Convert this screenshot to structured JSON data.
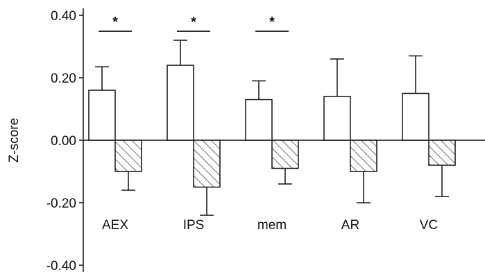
{
  "chart_data": {
    "type": "bar",
    "title": "",
    "xlabel": "",
    "ylabel": "Z-score",
    "ylim": [
      -0.4,
      0.4
    ],
    "yticks": [
      "0.40",
      "0.20",
      "0.00",
      "-0.20",
      "-0.40"
    ],
    "ytick_values": [
      0.4,
      0.2,
      0.0,
      -0.2,
      -0.4
    ],
    "categories": [
      "AEX",
      "IPS",
      "mem",
      "AR",
      "VC"
    ],
    "series": [
      {
        "style": "open",
        "values": [
          0.16,
          0.24,
          0.13,
          0.14,
          0.15
        ],
        "errors": [
          0.075,
          0.08,
          0.06,
          0.12,
          0.12
        ]
      },
      {
        "style": "hatched",
        "values": [
          -0.1,
          -0.15,
          -0.09,
          -0.1,
          -0.08
        ],
        "errors": [
          0.06,
          0.09,
          0.05,
          0.1,
          0.1
        ]
      }
    ],
    "significance": [
      {
        "category": "AEX",
        "label": "*"
      },
      {
        "category": "IPS",
        "label": "*"
      },
      {
        "category": "mem",
        "label": "*"
      }
    ],
    "grid": false,
    "legend": "none"
  }
}
